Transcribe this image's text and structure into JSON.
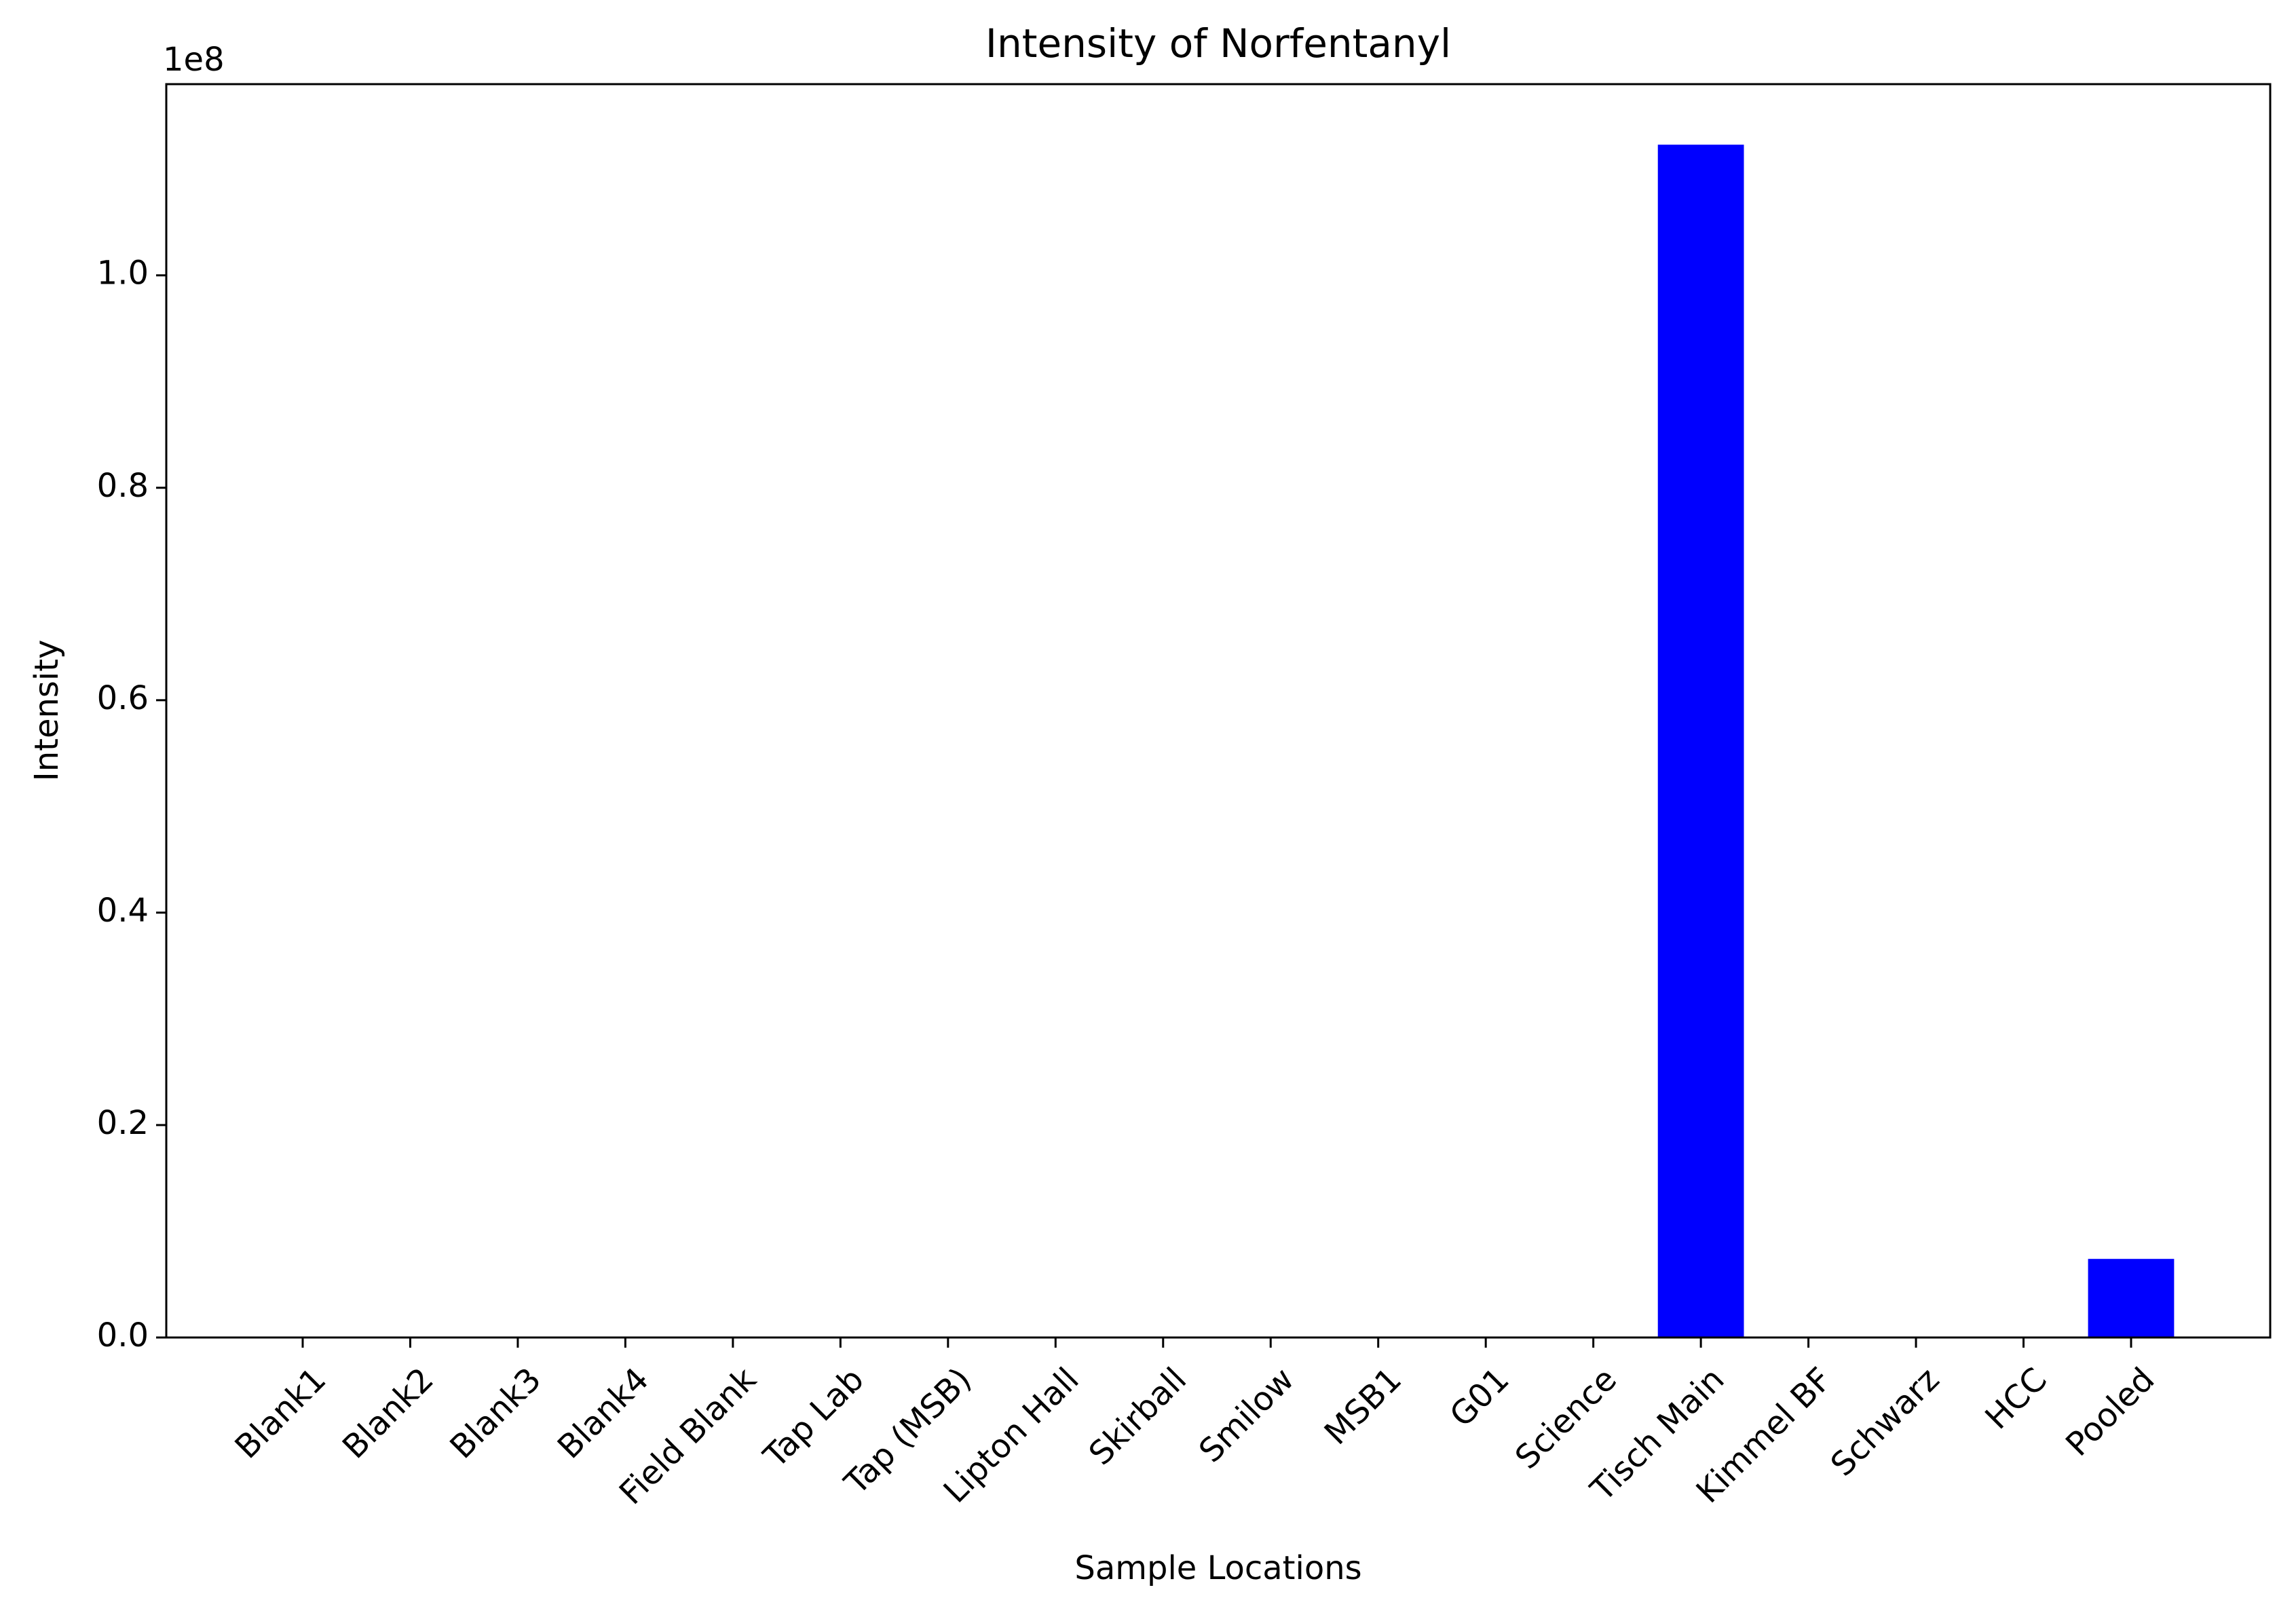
{
  "chart_data": {
    "type": "bar",
    "title": "Intensity of Norfentanyl",
    "xlabel": "Sample Locations",
    "ylabel": "Intensity",
    "y_offset_label": "1e8",
    "categories": [
      "Blank1",
      "Blank2",
      "Blank3",
      "Blank4",
      "Field Blank",
      "Tap Lab",
      "Tap (MSB)",
      "Lipton Hall",
      "Skirball",
      "Smilow",
      "MSB1",
      "G01",
      "Science",
      "Tisch Main",
      "Kimmel BF",
      "Schwarz",
      "HCC",
      "Pooled"
    ],
    "values": [
      0,
      0,
      0,
      0,
      0,
      0,
      0,
      0,
      0,
      0,
      0,
      0,
      0,
      112300000,
      0,
      0,
      0,
      7400000
    ],
    "ylim": [
      0,
      118000000
    ],
    "yticks": [
      0,
      20000000,
      40000000,
      60000000,
      80000000,
      100000000
    ],
    "ytick_labels": [
      "0.0",
      "0.2",
      "0.4",
      "0.6",
      "0.8",
      "1.0"
    ],
    "bar_color": "#0000ff",
    "grid": false,
    "legend": "none"
  }
}
